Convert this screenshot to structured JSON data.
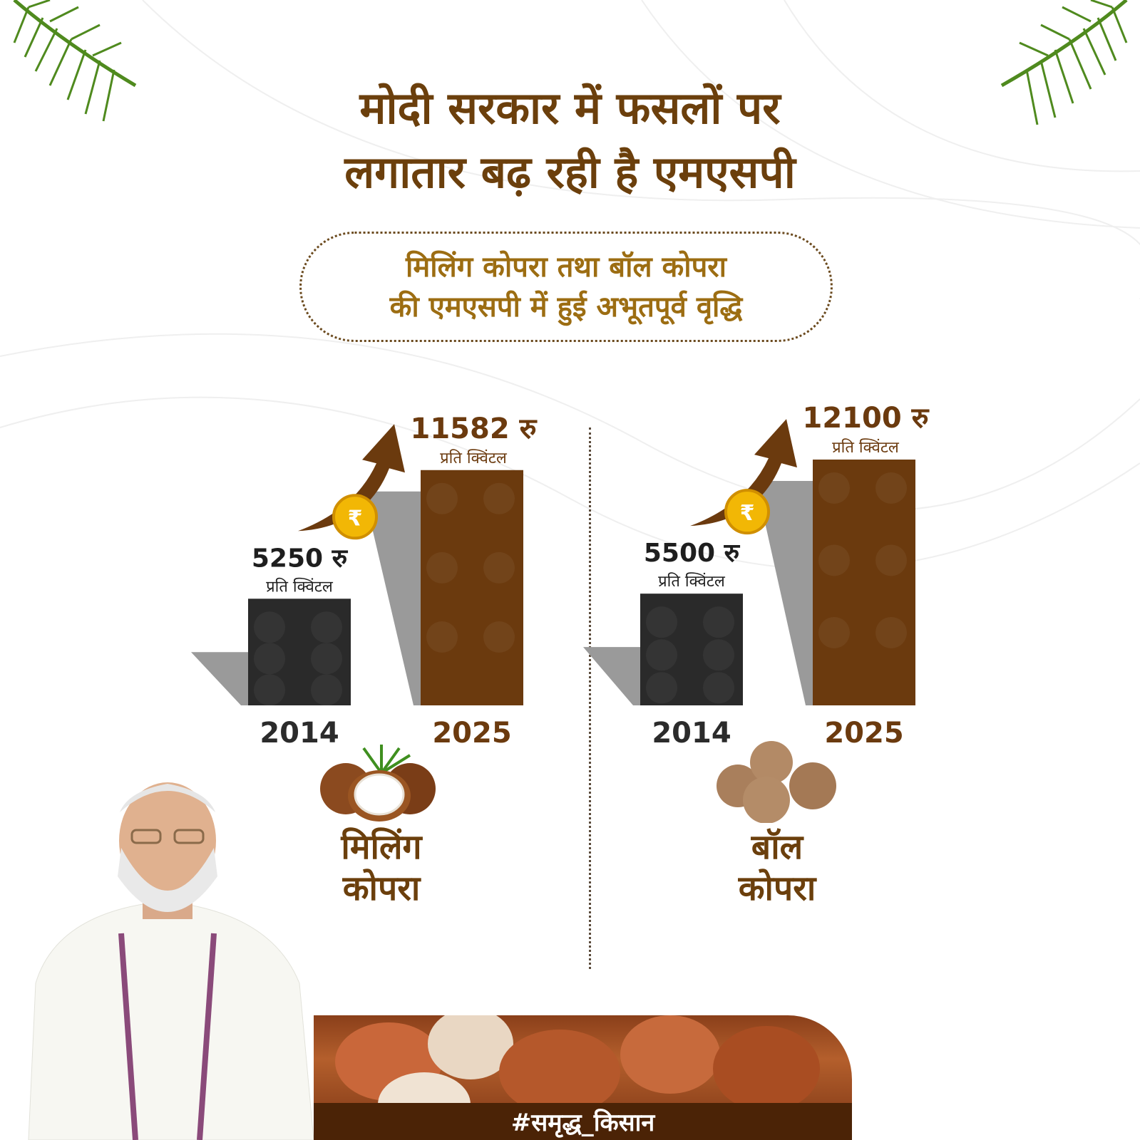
{
  "title": {
    "line1": "मोदी सरकार में फसलों पर",
    "line2": "लगातार बढ़ रही है एमएसपी"
  },
  "subtitle": {
    "line1": "मिलिंग कोपरा तथा बॉल कोपरा",
    "line2": "की एमएसपी में हुई अभूतपूर्व वृद्धि"
  },
  "chart_data": [
    {
      "type": "bar",
      "name": "मिलिंग कोपरा",
      "categories": [
        "2014",
        "2025"
      ],
      "values": [
        5250,
        11582
      ],
      "value_labels": [
        "5250 रु",
        "11582 रु"
      ],
      "unit_label": "प्रति क्विंटल",
      "colors": [
        "#2a2a2a",
        "#6b3a0e"
      ]
    },
    {
      "type": "bar",
      "name": "बॉल कोपरा",
      "categories": [
        "2014",
        "2025"
      ],
      "values": [
        5500,
        12100
      ],
      "value_labels": [
        "5500 रु",
        "12100 रु"
      ],
      "unit_label": "प्रति क्विंटल",
      "colors": [
        "#2a2a2a",
        "#6b3a0e"
      ]
    }
  ],
  "crops": {
    "left": {
      "line1": "मिलिंग",
      "line2": "कोपरा",
      "icon": "coconut-icon"
    },
    "right": {
      "line1": "बॉल",
      "line2": "कोपरा",
      "icon": "ball-copra-icon"
    }
  },
  "hashtag": "#समृद्ध_किसान",
  "coin_symbol": "₹",
  "colors": {
    "title": "#6b3f0c",
    "subtitle": "#9c6d12",
    "bar_2014": "#2a2a2a",
    "bar_2025": "#6b3a0e",
    "arrow": "#6b3a0e",
    "coin": "#f2b705",
    "hashtag_bg": "#4b2306"
  }
}
